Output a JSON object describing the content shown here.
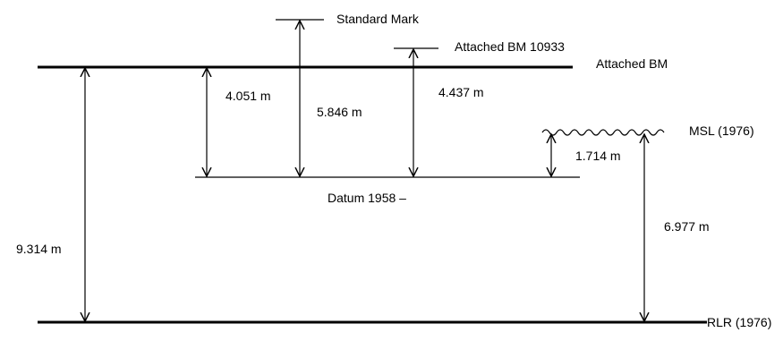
{
  "diagram": {
    "levels": {
      "standard_mark": "Standard Mark",
      "attached_bm_10933": "Attached BM 10933",
      "attached_bm": "Attached BM",
      "msl": "MSL (1976)",
      "datum": "Datum 1958 –",
      "rlr": "RLR (1976)"
    },
    "measurements": {
      "attached_bm_to_rlr": "9.314 m",
      "attached_bm_to_datum": "4.051 m",
      "standard_mark_to_datum": "5.846 m",
      "attached_bm_10933_to_datum": "4.437 m",
      "msl_to_datum": "1.714 m",
      "msl_to_rlr": "6.977 m"
    },
    "colors": {
      "line": "#000000",
      "background": "#ffffff"
    }
  }
}
